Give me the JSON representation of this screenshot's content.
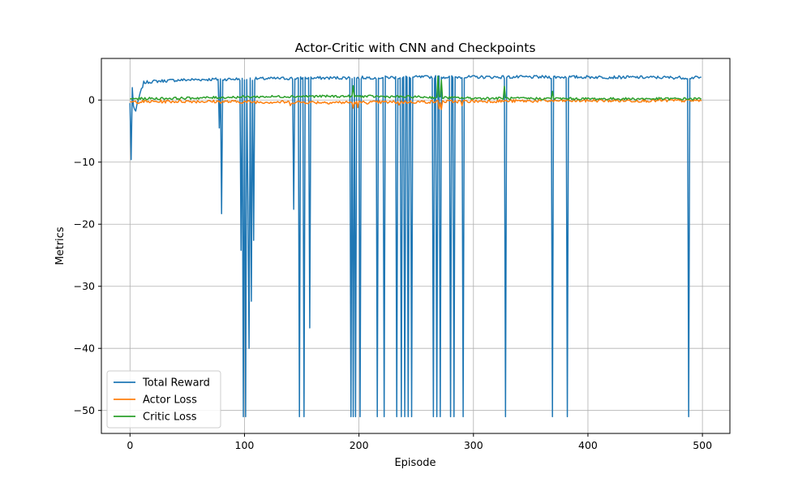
{
  "chart_data": {
    "type": "line",
    "title": "Actor-Critic with CNN and Checkpoints",
    "xlabel": "Episode",
    "ylabel": "Metrics",
    "xlim": [
      -25,
      524
    ],
    "ylim": [
      -53.7,
      6.7
    ],
    "xticks": [
      0,
      100,
      200,
      300,
      400,
      500
    ],
    "yticks": [
      -50,
      -40,
      -30,
      -20,
      -10,
      0
    ],
    "grid": true,
    "legend": "lower-left",
    "n_episodes": 500,
    "colors": {
      "Total Reward": "#1f77b4",
      "Actor Loss": "#ff7f0e",
      "Critic Loss": "#2ca02c"
    },
    "series": [
      {
        "name": "Total Reward",
        "baseline": [
          [
            0,
            -0.5
          ],
          [
            1,
            -9.6
          ],
          [
            2,
            2.0
          ],
          [
            3,
            -1.0
          ],
          [
            5,
            -1.8
          ],
          [
            8,
            0.5
          ],
          [
            12,
            2.8
          ],
          [
            20,
            3.0
          ],
          [
            40,
            3.2
          ],
          [
            60,
            3.3
          ],
          [
            100,
            3.4
          ],
          [
            140,
            3.5
          ],
          [
            200,
            3.6
          ],
          [
            260,
            3.7
          ],
          [
            300,
            3.7
          ],
          [
            400,
            3.7
          ],
          [
            499,
            3.6
          ]
        ],
        "dips": [
          [
            78,
            -4.5
          ],
          [
            80,
            -18.3
          ],
          [
            97,
            -24.2
          ],
          [
            99,
            -51
          ],
          [
            101,
            -51
          ],
          [
            103,
            -16.3
          ],
          [
            104,
            -40
          ],
          [
            106,
            -32.4
          ],
          [
            108,
            -22.6
          ],
          [
            143,
            -17.6
          ],
          [
            148,
            -51
          ],
          [
            152,
            -51
          ],
          [
            157,
            -36.7
          ],
          [
            193,
            -51
          ],
          [
            195,
            -51
          ],
          [
            197,
            -51
          ],
          [
            201,
            -51
          ],
          [
            216,
            -51
          ],
          [
            222,
            -51
          ],
          [
            233,
            -51
          ],
          [
            237,
            -51
          ],
          [
            240,
            -51
          ],
          [
            243,
            -51
          ],
          [
            246,
            -51
          ],
          [
            265,
            -51
          ],
          [
            268,
            -51
          ],
          [
            271,
            -51
          ],
          [
            280,
            -51
          ],
          [
            283,
            -51
          ],
          [
            291,
            -51
          ],
          [
            328,
            -51
          ],
          [
            369,
            -51
          ],
          [
            382,
            -51
          ],
          [
            488,
            -51
          ]
        ]
      },
      {
        "name": "Actor Loss",
        "baseline": [
          [
            0,
            -0.3
          ],
          [
            50,
            -0.2
          ],
          [
            100,
            -0.3
          ],
          [
            200,
            -0.4
          ],
          [
            300,
            -0.2
          ],
          [
            400,
            -0.1
          ],
          [
            499,
            -0.1
          ]
        ],
        "dips": [
          [
            140,
            -0.9
          ],
          [
            195,
            -1.3
          ],
          [
            199,
            -1.2
          ],
          [
            235,
            -0.8
          ],
          [
            270,
            -1.4
          ],
          [
            272,
            -1.5
          ],
          [
            290,
            -0.9
          ]
        ]
      },
      {
        "name": "Critic Loss",
        "baseline": [
          [
            0,
            0.2
          ],
          [
            50,
            0.3
          ],
          [
            100,
            0.5
          ],
          [
            150,
            0.6
          ],
          [
            200,
            0.6
          ],
          [
            250,
            0.5
          ],
          [
            300,
            0.3
          ],
          [
            400,
            0.2
          ],
          [
            499,
            0.2
          ]
        ],
        "dips": [
          [
            195,
            2.3
          ],
          [
            269,
            3.8
          ],
          [
            272,
            3.2
          ],
          [
            327,
            2.2
          ],
          [
            369,
            1.4
          ]
        ]
      }
    ]
  }
}
